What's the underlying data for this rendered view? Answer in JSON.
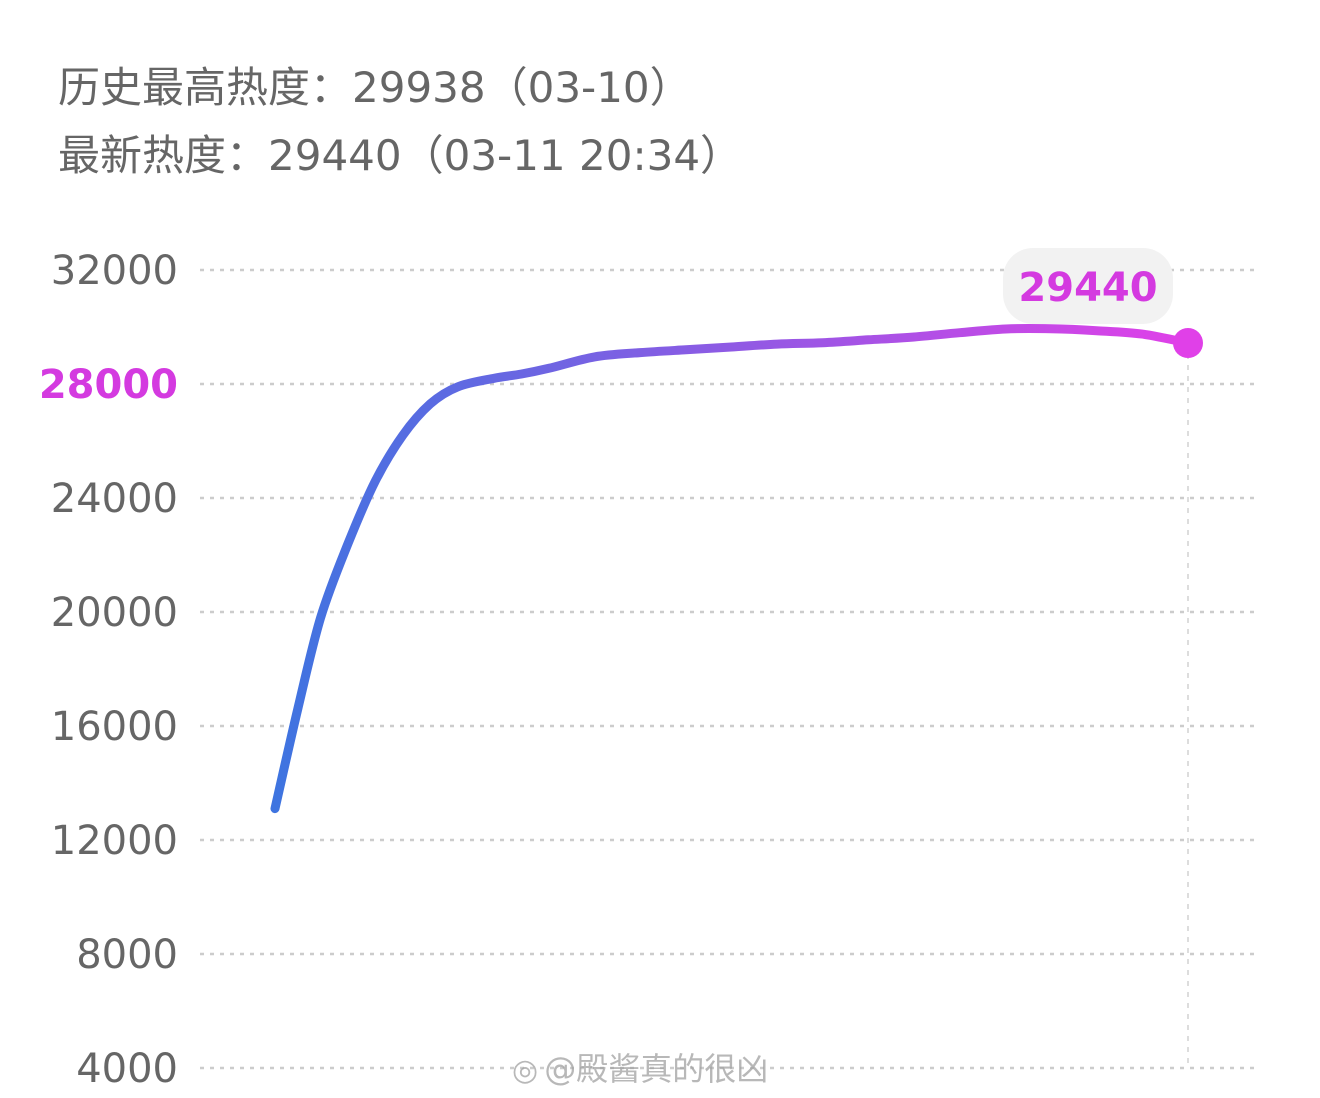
{
  "header": {
    "peak_line": "历史最高热度：29938（03-10）",
    "latest_line": "最新热度：29440（03-11 20:34）"
  },
  "colors": {
    "text_gray": "#666666",
    "highlight_magenta": "#d43ae0",
    "line_start_blue": "#3e74e0",
    "line_end_magenta": "#e040e8",
    "grid": "#cccccc",
    "tooltip_bg": "#f2f2f2"
  },
  "chart_data": {
    "type": "line",
    "title": "",
    "xlabel": "",
    "ylabel": "",
    "ylim": [
      4000,
      32000
    ],
    "yticks": [
      "4000",
      "8000",
      "12000",
      "16000",
      "20000",
      "24000",
      "28000",
      "32000"
    ],
    "highlight_tick": "28000",
    "grid": "dashed-horizontal",
    "x": [
      0,
      0.025,
      0.05,
      0.08,
      0.11,
      0.14,
      0.17,
      0.2,
      0.24,
      0.27,
      0.3,
      0.35,
      0.4,
      0.45,
      0.5,
      0.55,
      0.6,
      0.65,
      0.7,
      0.75,
      0.8,
      0.85,
      0.9,
      0.95,
      1.0
    ],
    "series": [
      {
        "values": [
          13100,
          16600,
          19800,
          22400,
          24600,
          26200,
          27300,
          27900,
          28200,
          28350,
          28550,
          28950,
          29100,
          29200,
          29300,
          29400,
          29450,
          29550,
          29650,
          29800,
          29930,
          29938,
          29870,
          29750,
          29440
        ]
      }
    ],
    "tooltip": {
      "label": "29440"
    }
  },
  "watermark": {
    "icon": "weibo-icon",
    "text": "@殿酱真的很凶"
  }
}
